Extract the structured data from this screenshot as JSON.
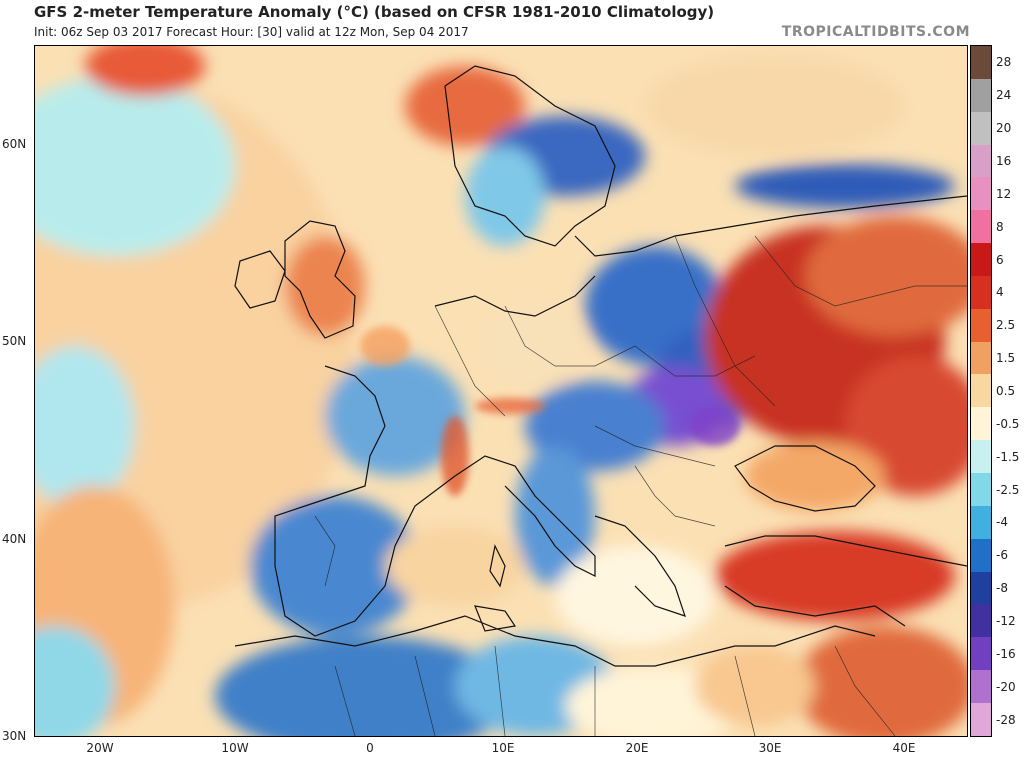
{
  "header": {
    "title": "GFS 2-meter Temperature Anomaly (°C) (based on CFSR 1981-2010 Climatology)",
    "subtitle": "Init: 06z Sep 03 2017   Forecast Hour: [30]   valid at 12z Mon, Sep 04 2017",
    "credit": "TROPICALTIDBITS.COM"
  },
  "axes": {
    "lat_labels": [
      "60N",
      "50N",
      "40N",
      "30N"
    ],
    "lon_labels": [
      "20W",
      "10W",
      "0",
      "10E",
      "20E",
      "30E",
      "40E"
    ]
  },
  "legend": {
    "labels": [
      "28",
      "24",
      "20",
      "16",
      "12",
      "8",
      "6",
      "4",
      "2.5",
      "1.5",
      "0.5",
      "-0.5",
      "-1.5",
      "-2.5",
      "-4",
      "-6",
      "-8",
      "-12",
      "-16",
      "-20",
      "-28"
    ],
    "colors": [
      "#6b4a3a",
      "#a0a0a0",
      "#c0c0c0",
      "#d8a0c8",
      "#e890c0",
      "#f070a0",
      "#c81818",
      "#d83020",
      "#e86030",
      "#f0a060",
      "#f8d8a0",
      "#fff4d8",
      "#c8f0f0",
      "#80d8e8",
      "#40b0e0",
      "#2070c8",
      "#2040a0",
      "#4030a0",
      "#7040c0",
      "#b070d0",
      "#e0a8d8"
    ]
  },
  "map": {
    "region": "Europe, North Africa, Middle East",
    "regions": [
      {
        "name": "atlantic-warm",
        "anomaly": "warm",
        "color": "#f8c890"
      },
      {
        "name": "scandinavia-cold",
        "anomaly": "cold",
        "color": "#3060c0"
      },
      {
        "name": "central-europe-cold",
        "anomaly": "cold",
        "color": "#3068c8"
      },
      {
        "name": "balkans-very-cold",
        "anomaly": "very cold",
        "color": "#7850d0"
      },
      {
        "name": "russia-ukraine-hot",
        "anomaly": "hot",
        "color": "#c83020"
      },
      {
        "name": "turkey-hot",
        "anomaly": "hot",
        "color": "#d83a28"
      },
      {
        "name": "iberia-cold",
        "anomaly": "cold",
        "color": "#4888d0"
      },
      {
        "name": "north-africa-cold",
        "anomaly": "cold",
        "color": "#4080c8"
      }
    ]
  }
}
